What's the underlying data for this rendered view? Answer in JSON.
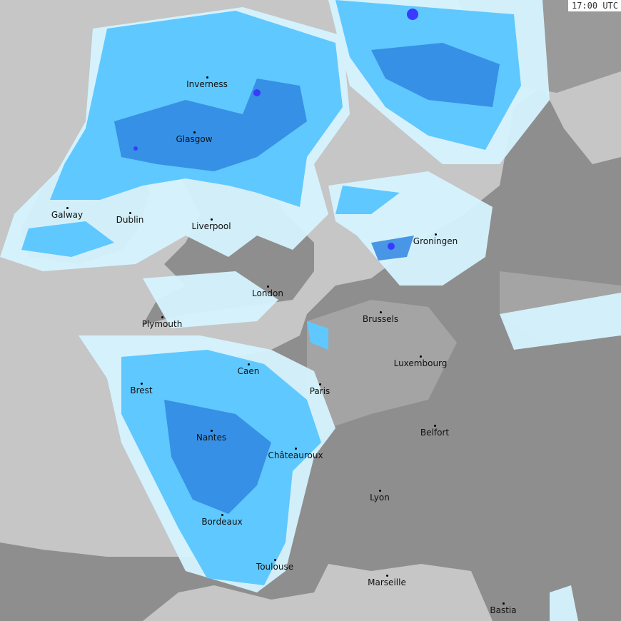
{
  "time_label": "17:00 UTC",
  "colors": {
    "sea": "#c6c6c6",
    "land": "#8e8e8e",
    "land_light": "#a8a8a8",
    "rain_light": "#d6f4ff",
    "rain_mid": "#5fc8ff",
    "rain_heavy": "#2f86e0",
    "rain_extreme": "#3a3aff",
    "coast": "#9a7a7a"
  },
  "cities": [
    "Inverness",
    "Glasgow",
    "Galway",
    "Dublin",
    "Liverpool",
    "London",
    "Plymouth",
    "Caen",
    "Brest",
    "Paris",
    "Nantes",
    "Châteauroux",
    "Bordeaux",
    "Toulouse",
    "Marseille",
    "Bastia",
    "Lyon",
    "Belfort",
    "Luxembourg",
    "Brussels",
    "Groningen"
  ]
}
